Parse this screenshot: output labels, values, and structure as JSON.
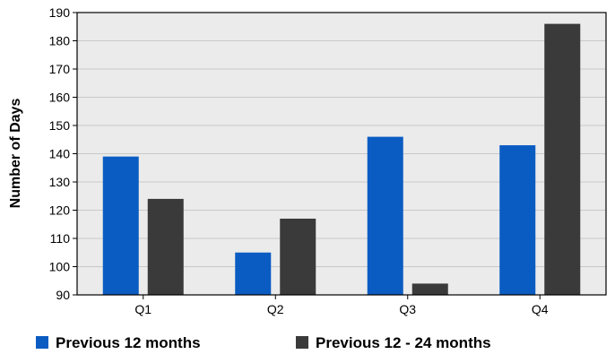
{
  "chart_data": {
    "type": "bar",
    "title": "",
    "xlabel": "",
    "ylabel": "Number of Days",
    "categories": [
      "Q1",
      "Q2",
      "Q3",
      "Q4"
    ],
    "series": [
      {
        "name": "Previous 12 months",
        "color": "#0a5cc2",
        "values": [
          139,
          105,
          146,
          143
        ]
      },
      {
        "name": "Previous 12 - 24 months",
        "color": "#3a3a3a",
        "values": [
          124,
          117,
          94,
          186
        ]
      }
    ],
    "ylim": [
      90,
      190
    ],
    "yticks": [
      90,
      100,
      110,
      120,
      130,
      140,
      150,
      160,
      170,
      180,
      190
    ],
    "grid": true,
    "plot_background": "#ebebeb",
    "legend_position": "bottom"
  }
}
